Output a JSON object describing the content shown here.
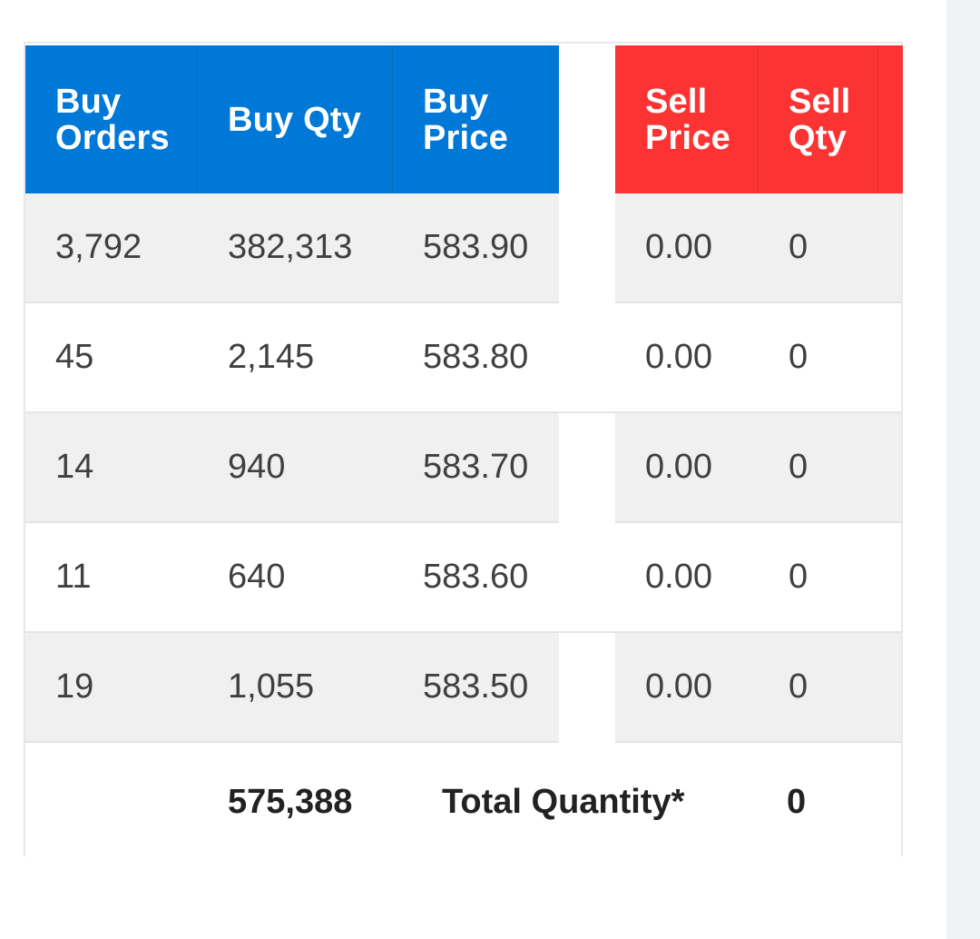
{
  "headers": {
    "buy_orders": "Buy\nOrders",
    "buy_qty": "Buy Qty",
    "buy_price": "Buy\nPrice",
    "sell_price": "Sell\nPrice",
    "sell_qty": "Sell\nQty"
  },
  "rows": [
    {
      "buy_orders": "3,792",
      "buy_qty": "382,313",
      "buy_price": "583.90",
      "sell_price": "0.00",
      "sell_qty": "0"
    },
    {
      "buy_orders": "45",
      "buy_qty": "2,145",
      "buy_price": "583.80",
      "sell_price": "0.00",
      "sell_qty": "0"
    },
    {
      "buy_orders": "14",
      "buy_qty": "940",
      "buy_price": "583.70",
      "sell_price": "0.00",
      "sell_qty": "0"
    },
    {
      "buy_orders": "11",
      "buy_qty": "640",
      "buy_price": "583.60",
      "sell_price": "0.00",
      "sell_qty": "0"
    },
    {
      "buy_orders": "19",
      "buy_qty": "1,055",
      "buy_price": "583.50",
      "sell_price": "0.00",
      "sell_qty": "0"
    }
  ],
  "totals": {
    "buy_qty_total": "575,388",
    "label": "Total Quantity*",
    "sell_qty_total": "0"
  },
  "colors": {
    "buy_header": "#0078d7",
    "sell_header": "#fb3333",
    "row_shade": "#f0f0f0"
  }
}
